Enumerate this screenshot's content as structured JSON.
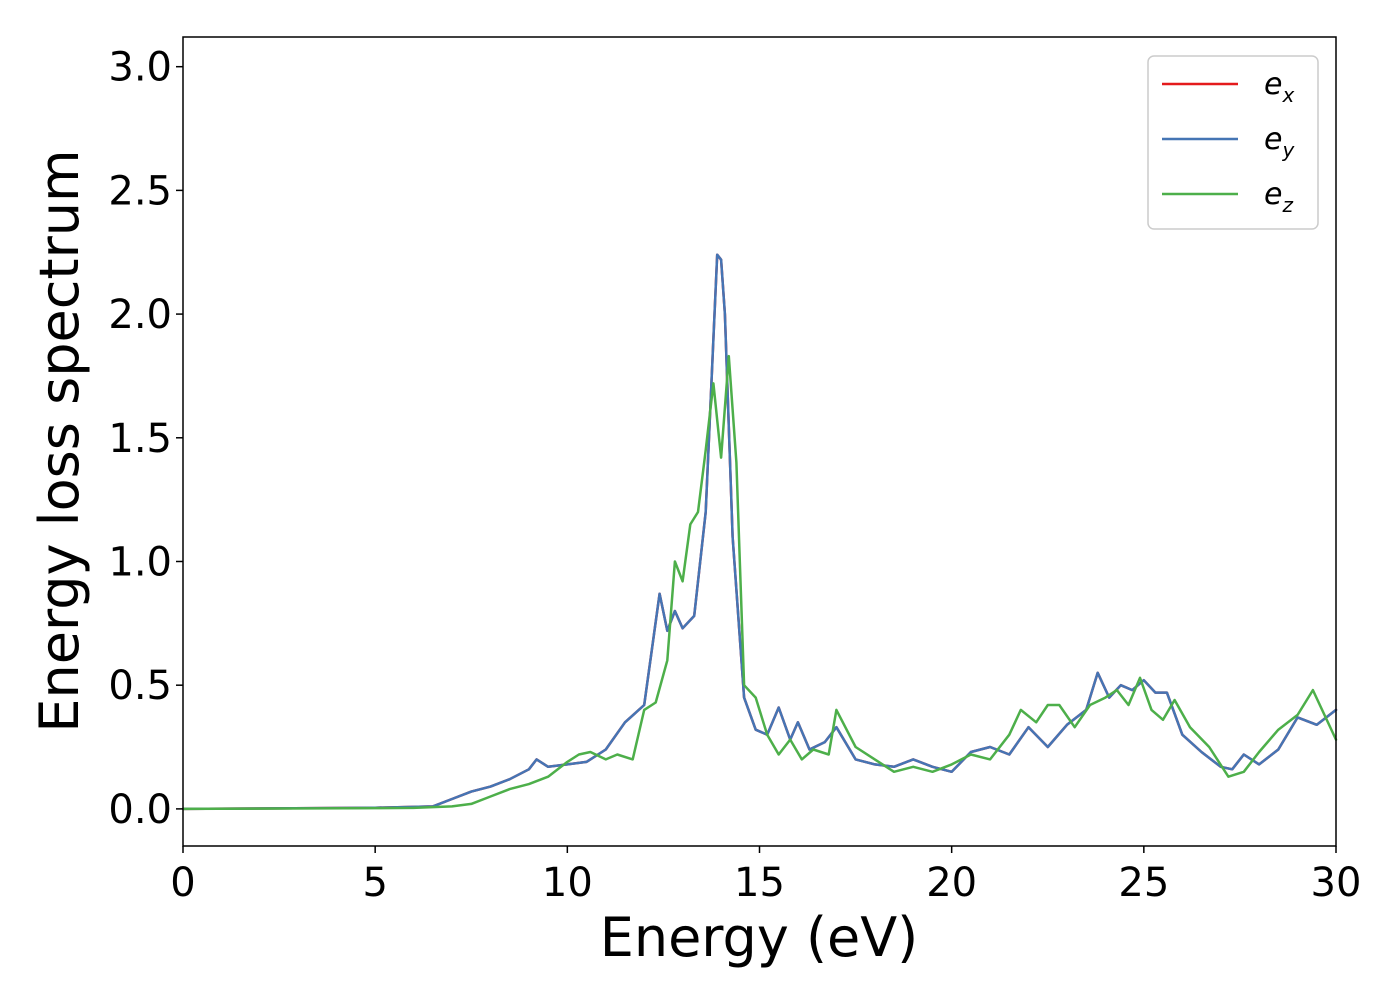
{
  "chart_data": {
    "type": "line",
    "xlabel": "Energy (eV)",
    "ylabel": "Energy loss spectrum",
    "xlim": [
      0,
      30
    ],
    "ylim": [
      -0.15,
      3.12
    ],
    "xticks": [
      "0",
      "5",
      "10",
      "15",
      "20",
      "25",
      "30"
    ],
    "yticks": [
      "0.0",
      "0.5",
      "1.0",
      "1.5",
      "2.0",
      "2.5",
      "3.0"
    ],
    "grid": false,
    "legend_position": "top-right",
    "series": [
      {
        "name": "e_x",
        "legend_base": "e",
        "legend_sub": "x",
        "color": "#e41a1c",
        "x": [
          0,
          5,
          6,
          6.5,
          7,
          7.5,
          8,
          8.5,
          9,
          9.2,
          9.5,
          10,
          10.5,
          11,
          11.5,
          12,
          12.4,
          12.6,
          12.8,
          13,
          13.3,
          13.6,
          13.8,
          13.9,
          14.0,
          14.1,
          14.3,
          14.6,
          14.9,
          15.2,
          15.5,
          15.8,
          16,
          16.3,
          16.7,
          17,
          17.5,
          18,
          18.5,
          19,
          19.5,
          20,
          20.5,
          21,
          21.5,
          22,
          22.5,
          23,
          23.5,
          23.8,
          24.1,
          24.4,
          24.7,
          25,
          25.3,
          25.6,
          26,
          26.5,
          27,
          27.3,
          27.6,
          28,
          28.5,
          29,
          29.5,
          30
        ],
        "values": [
          0,
          0.005,
          0.008,
          0.01,
          0.04,
          0.07,
          0.09,
          0.12,
          0.16,
          0.2,
          0.17,
          0.18,
          0.19,
          0.24,
          0.35,
          0.42,
          0.87,
          0.72,
          0.8,
          0.73,
          0.78,
          1.2,
          1.9,
          2.24,
          2.22,
          2.0,
          1.1,
          0.45,
          0.32,
          0.3,
          0.41,
          0.28,
          0.35,
          0.24,
          0.27,
          0.33,
          0.2,
          0.18,
          0.17,
          0.2,
          0.17,
          0.15,
          0.23,
          0.25,
          0.22,
          0.33,
          0.25,
          0.34,
          0.4,
          0.55,
          0.45,
          0.5,
          0.48,
          0.52,
          0.47,
          0.47,
          0.3,
          0.23,
          0.17,
          0.16,
          0.22,
          0.18,
          0.24,
          0.37,
          0.34,
          0.4
        ]
      },
      {
        "name": "e_y",
        "legend_base": "e",
        "legend_sub": "y",
        "color": "#4575b4",
        "x": [
          0,
          5,
          6,
          6.5,
          7,
          7.5,
          8,
          8.5,
          9,
          9.2,
          9.5,
          10,
          10.5,
          11,
          11.5,
          12,
          12.4,
          12.6,
          12.8,
          13,
          13.3,
          13.6,
          13.8,
          13.9,
          14.0,
          14.1,
          14.3,
          14.6,
          14.9,
          15.2,
          15.5,
          15.8,
          16,
          16.3,
          16.7,
          17,
          17.5,
          18,
          18.5,
          19,
          19.5,
          20,
          20.5,
          21,
          21.5,
          22,
          22.5,
          23,
          23.5,
          23.8,
          24.1,
          24.4,
          24.7,
          25,
          25.3,
          25.6,
          26,
          26.5,
          27,
          27.3,
          27.6,
          28,
          28.5,
          29,
          29.5,
          30
        ],
        "values": [
          0,
          0.005,
          0.008,
          0.01,
          0.04,
          0.07,
          0.09,
          0.12,
          0.16,
          0.2,
          0.17,
          0.18,
          0.19,
          0.24,
          0.35,
          0.42,
          0.87,
          0.72,
          0.8,
          0.73,
          0.78,
          1.2,
          1.9,
          2.24,
          2.22,
          2.0,
          1.1,
          0.45,
          0.32,
          0.3,
          0.41,
          0.28,
          0.35,
          0.24,
          0.27,
          0.33,
          0.2,
          0.18,
          0.17,
          0.2,
          0.17,
          0.15,
          0.23,
          0.25,
          0.22,
          0.33,
          0.25,
          0.34,
          0.4,
          0.55,
          0.45,
          0.5,
          0.48,
          0.52,
          0.47,
          0.47,
          0.3,
          0.23,
          0.17,
          0.16,
          0.22,
          0.18,
          0.24,
          0.37,
          0.34,
          0.4
        ]
      },
      {
        "name": "e_z",
        "legend_base": "e",
        "legend_sub": "z",
        "color": "#4daf4a",
        "x": [
          0,
          5,
          6,
          7,
          7.5,
          8,
          8.5,
          9,
          9.5,
          10,
          10.3,
          10.6,
          11,
          11.3,
          11.7,
          12,
          12.3,
          12.6,
          12.8,
          13,
          13.2,
          13.4,
          13.6,
          13.8,
          14.0,
          14.2,
          14.4,
          14.6,
          14.9,
          15.2,
          15.5,
          15.8,
          16.1,
          16.4,
          16.8,
          17,
          17.5,
          18,
          18.5,
          19,
          19.5,
          20,
          20.5,
          21,
          21.5,
          21.8,
          22.2,
          22.5,
          22.8,
          23.2,
          23.6,
          24,
          24.3,
          24.6,
          24.9,
          25.2,
          25.5,
          25.8,
          26.2,
          26.7,
          27.2,
          27.6,
          28,
          28.5,
          29,
          29.4,
          30
        ],
        "values": [
          0,
          0.003,
          0.004,
          0.01,
          0.02,
          0.05,
          0.08,
          0.1,
          0.13,
          0.19,
          0.22,
          0.23,
          0.2,
          0.22,
          0.2,
          0.4,
          0.43,
          0.6,
          1.0,
          0.92,
          1.15,
          1.2,
          1.45,
          1.72,
          1.42,
          1.83,
          1.4,
          0.5,
          0.45,
          0.3,
          0.22,
          0.28,
          0.2,
          0.24,
          0.22,
          0.4,
          0.25,
          0.2,
          0.15,
          0.17,
          0.15,
          0.18,
          0.22,
          0.2,
          0.3,
          0.4,
          0.35,
          0.42,
          0.42,
          0.33,
          0.42,
          0.45,
          0.48,
          0.42,
          0.53,
          0.4,
          0.36,
          0.44,
          0.33,
          0.25,
          0.13,
          0.15,
          0.23,
          0.32,
          0.38,
          0.48,
          0.28
        ]
      }
    ]
  }
}
